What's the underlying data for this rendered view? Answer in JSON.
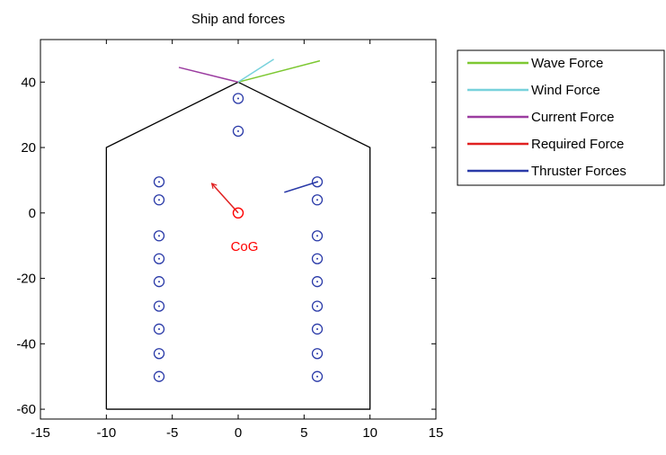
{
  "chart_data": {
    "type": "line",
    "title": "Ship and forces",
    "xlabel": "",
    "ylabel": "",
    "xlim": [
      -15,
      15
    ],
    "ylim": [
      -63,
      53
    ],
    "xticks": [
      -15,
      -10,
      -5,
      0,
      5,
      10,
      15
    ],
    "yticks": [
      -60,
      -40,
      -20,
      0,
      20,
      40
    ],
    "grid": false,
    "legend_position": "outside-right",
    "hull": {
      "color": "#000000",
      "points": [
        [
          -10,
          -60
        ],
        [
          -10,
          20
        ],
        [
          0,
          40
        ],
        [
          10,
          20
        ],
        [
          10,
          -60
        ],
        [
          -10,
          -60
        ]
      ]
    },
    "thrusters": {
      "color": "#2a3aa8",
      "points": [
        [
          0,
          35
        ],
        [
          0,
          25
        ],
        [
          -6,
          9.5
        ],
        [
          -6,
          4
        ],
        [
          -6,
          -7
        ],
        [
          -6,
          -14
        ],
        [
          -6,
          -21
        ],
        [
          -6,
          -28.5
        ],
        [
          -6,
          -35.5
        ],
        [
          -6,
          -43
        ],
        [
          -6,
          -50
        ],
        [
          6,
          9.5
        ],
        [
          6,
          4
        ],
        [
          6,
          -7
        ],
        [
          6,
          -14
        ],
        [
          6,
          -21
        ],
        [
          6,
          -28.5
        ],
        [
          6,
          -35.5
        ],
        [
          6,
          -43
        ],
        [
          6,
          -50
        ]
      ]
    },
    "cog": {
      "x": 0,
      "y": 0,
      "label": "CoG",
      "color": "#ff0000"
    },
    "series": [
      {
        "name": "Wave Force",
        "color": "#7dc832",
        "x": [
          0,
          6.2
        ],
        "y": [
          40,
          46.5
        ]
      },
      {
        "name": "Wind Force",
        "color": "#78d2dc",
        "x": [
          0,
          2.7
        ],
        "y": [
          40,
          47
        ]
      },
      {
        "name": "Current Force",
        "color": "#9b3ca0",
        "x": [
          0,
          -4.5
        ],
        "y": [
          40,
          44.5
        ]
      },
      {
        "name": "Required Force",
        "color": "#e02020",
        "x": [
          0,
          -2
        ],
        "y": [
          0,
          9
        ]
      },
      {
        "name": "Thruster Forces",
        "color": "#2a3aa8",
        "x": [
          6,
          3.5
        ],
        "y": [
          9.5,
          6.3
        ]
      }
    ]
  }
}
